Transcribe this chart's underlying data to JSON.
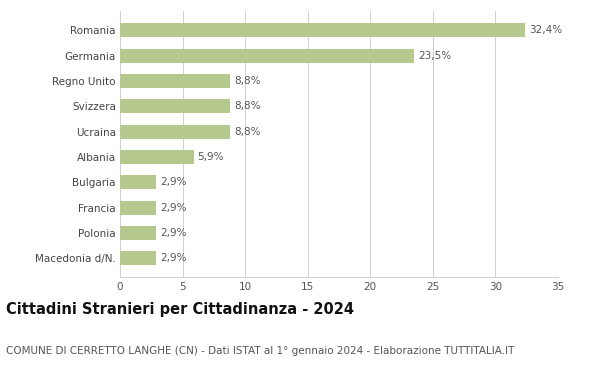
{
  "categories": [
    "Macedonia d/N.",
    "Polonia",
    "Francia",
    "Bulgaria",
    "Albania",
    "Ucraina",
    "Svizzera",
    "Regno Unito",
    "Germania",
    "Romania"
  ],
  "values": [
    2.9,
    2.9,
    2.9,
    2.9,
    5.9,
    8.8,
    8.8,
    8.8,
    23.5,
    32.4
  ],
  "labels": [
    "2,9%",
    "2,9%",
    "2,9%",
    "2,9%",
    "5,9%",
    "8,8%",
    "8,8%",
    "8,8%",
    "23,5%",
    "32,4%"
  ],
  "bar_color": "#b5c98e",
  "background_color": "#ffffff",
  "grid_color": "#d0d0d0",
  "title": "Cittadini Stranieri per Cittadinanza - 2024",
  "subtitle": "COMUNE DI CERRETTO LANGHE (CN) - Dati ISTAT al 1° gennaio 2024 - Elaborazione TUTTITALIA.IT",
  "xlim": [
    0,
    35
  ],
  "xticks": [
    0,
    5,
    10,
    15,
    20,
    25,
    30,
    35
  ],
  "title_fontsize": 10.5,
  "subtitle_fontsize": 7.5,
  "label_fontsize": 7.5,
  "tick_fontsize": 7.5,
  "ylabel_fontsize": 7.5
}
